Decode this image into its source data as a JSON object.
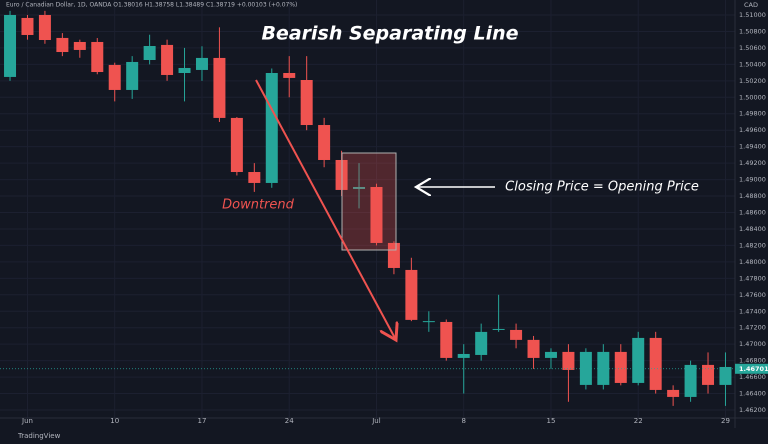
{
  "chart_data": {
    "type": "candlestick",
    "header": "Euro / Canadian Dollar, 1D, OANDA  O1.38016 H1.38758 L1.38489 C1.38719 +0.00103 (+0.07%)",
    "currency": "CAD",
    "title": "Bearish Separating Line",
    "annotations": [
      "Downtrend",
      "Closing Price = Opening Price"
    ],
    "brand": "TradingView",
    "last_price": 1.46701,
    "up_color": "#26a69a",
    "down_color": "#ef5350",
    "grid": true,
    "categories": [
      null,
      "Jun",
      null,
      null,
      null,
      null,
      "10",
      null,
      null,
      null,
      null,
      "17",
      null,
      null,
      null,
      null,
      "24",
      null,
      null,
      null,
      null,
      "Jul",
      null,
      null,
      null,
      null,
      "8",
      null,
      null,
      null,
      null,
      "15",
      null,
      null,
      null,
      null,
      "22",
      null,
      null,
      null,
      null,
      "29"
    ],
    "open": [
      1.50247,
      1.50964,
      1.51,
      1.50721,
      1.50672,
      1.50672,
      1.50393,
      1.50089,
      1.50453,
      1.50636,
      1.50295,
      1.50332,
      1.50478,
      1.49749,
      1.49092,
      1.48959,
      1.50295,
      1.5021,
      1.49663,
      1.49238,
      1.48886,
      1.4891,
      1.4823,
      1.47902,
      1.4727,
      1.4727,
      1.46833,
      1.46869,
      1.47173,
      1.47173,
      1.47052,
      1.46833,
      1.46906,
      1.46505,
      1.46505,
      1.46906,
      1.46529,
      1.47076,
      1.46444,
      1.46359,
      1.46748,
      1.46505
    ],
    "high": [
      1.5105,
      1.51,
      1.5105,
      1.5078,
      1.507,
      1.5072,
      1.5042,
      1.505,
      1.5076,
      1.507,
      1.506,
      1.5062,
      1.5085,
      1.4976,
      1.492,
      1.5035,
      1.505,
      1.505,
      1.4975,
      1.4935,
      1.492,
      1.4895,
      1.4825,
      1.4805,
      1.474,
      1.473,
      1.47,
      1.4725,
      1.476,
      1.4725,
      1.471,
      1.4695,
      1.47,
      1.4695,
      1.47,
      1.47,
      1.4715,
      1.4715,
      1.465,
      1.468,
      1.469,
      1.469
    ],
    "low": [
      1.502,
      1.507,
      1.5065,
      1.505,
      1.5048,
      1.5028,
      1.4995,
      1.4998,
      1.504,
      1.502,
      1.4995,
      1.502,
      1.497,
      1.4905,
      1.4885,
      1.489,
      1.5,
      1.496,
      1.4915,
      1.488,
      1.4865,
      1.482,
      1.4785,
      1.4728,
      1.4715,
      1.468,
      1.464,
      1.468,
      1.4715,
      1.4695,
      1.467,
      1.467,
      1.463,
      1.4645,
      1.4645,
      1.465,
      1.465,
      1.464,
      1.4625,
      1.463,
      1.464,
      1.4625
    ],
    "close": [
      1.51,
      1.50757,
      1.50696,
      1.5055,
      1.50575,
      1.50307,
      1.50089,
      1.50429,
      1.50623,
      1.50271,
      1.50356,
      1.50478,
      1.49749,
      1.49092,
      1.48959,
      1.50295,
      1.50235,
      1.49663,
      1.49238,
      1.48874,
      1.4891,
      1.4823,
      1.47926,
      1.47295,
      1.4728,
      1.46833,
      1.46881,
      1.47149,
      1.47185,
      1.47052,
      1.46833,
      1.46906,
      1.46687,
      1.46906,
      1.46906,
      1.46529,
      1.47076,
      1.46444,
      1.46359,
      1.46748,
      1.46505,
      1.46723
    ],
    "ylim": [
      1.46103,
      1.51182
    ],
    "yticks": [
      {
        "value": 1.51,
        "label": "1.51000"
      },
      {
        "value": 1.508,
        "label": "1.50800"
      },
      {
        "value": 1.506,
        "label": "1.50600"
      },
      {
        "value": 1.504,
        "label": "1.50400"
      },
      {
        "value": 1.502,
        "label": "1.50200"
      },
      {
        "value": 1.5,
        "label": "1.50000"
      },
      {
        "value": 1.498,
        "label": "1.49800"
      },
      {
        "value": 1.496,
        "label": "1.49600"
      },
      {
        "value": 1.494,
        "label": "1.49400"
      },
      {
        "value": 1.492,
        "label": "1.49200"
      },
      {
        "value": 1.49,
        "label": "1.49000"
      },
      {
        "value": 1.488,
        "label": "1.48800"
      },
      {
        "value": 1.486,
        "label": "1.48600"
      },
      {
        "value": 1.484,
        "label": "1.48400"
      },
      {
        "value": 1.482,
        "label": "1.48200"
      },
      {
        "value": 1.48,
        "label": "1.48000"
      },
      {
        "value": 1.478,
        "label": "1.47800"
      },
      {
        "value": 1.476,
        "label": "1.47600"
      },
      {
        "value": 1.474,
        "label": "1.47400"
      },
      {
        "value": 1.472,
        "label": "1.47200"
      },
      {
        "value": 1.47,
        "label": "1.47000"
      },
      {
        "value": 1.468,
        "label": "1.46800"
      },
      {
        "value": 1.466,
        "label": "1.46600"
      },
      {
        "value": 1.464,
        "label": "1.46400"
      },
      {
        "value": 1.462,
        "label": "1.46200"
      }
    ]
  }
}
